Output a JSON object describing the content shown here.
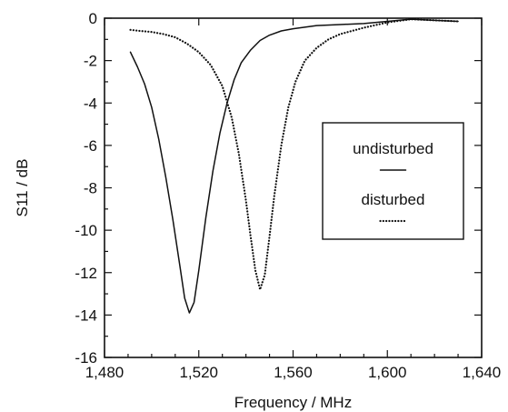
{
  "chart_data": {
    "type": "line",
    "xlabel": "Frequency  / MHz",
    "ylabel": "S11  / dB",
    "xlim": [
      1480,
      1640
    ],
    "ylim": [
      -16,
      0
    ],
    "xticks": [
      1480,
      1520,
      1560,
      1600,
      1640
    ],
    "xtick_labels": [
      "1,480",
      "1,520",
      "1,560",
      "1,600",
      "1,640"
    ],
    "yticks": [
      0,
      -2,
      -4,
      -6,
      -8,
      -10,
      -12,
      -14,
      -16
    ],
    "ytick_labels": [
      "0",
      "-2",
      "-4",
      "-6",
      "-8",
      "-10",
      "-12",
      "-14",
      "-16"
    ],
    "grid": false,
    "legend_position": "right",
    "series": [
      {
        "name": "undisturbed",
        "color": "#111111",
        "style": "solid",
        "points": [
          [
            1491,
            -1.6
          ],
          [
            1494,
            -2.3
          ],
          [
            1497,
            -3.1
          ],
          [
            1500,
            -4.2
          ],
          [
            1503,
            -5.7
          ],
          [
            1506,
            -7.5
          ],
          [
            1509,
            -9.5
          ],
          [
            1512,
            -11.7
          ],
          [
            1514,
            -13.2
          ],
          [
            1516,
            -13.9
          ],
          [
            1518,
            -13.4
          ],
          [
            1520,
            -11.9
          ],
          [
            1523,
            -9.4
          ],
          [
            1526,
            -7.2
          ],
          [
            1529,
            -5.4
          ],
          [
            1532,
            -4.0
          ],
          [
            1535,
            -2.9
          ],
          [
            1538,
            -2.1
          ],
          [
            1542,
            -1.5
          ],
          [
            1546,
            -1.05
          ],
          [
            1550,
            -0.8
          ],
          [
            1555,
            -0.6
          ],
          [
            1560,
            -0.5
          ],
          [
            1570,
            -0.35
          ],
          [
            1580,
            -0.3
          ],
          [
            1590,
            -0.25
          ],
          [
            1600,
            -0.15
          ],
          [
            1610,
            -0.05
          ],
          [
            1620,
            -0.1
          ],
          [
            1630,
            -0.15
          ]
        ]
      },
      {
        "name": "disturbed",
        "color": "#111111",
        "style": "dotted",
        "points": [
          [
            1491,
            -0.55
          ],
          [
            1495,
            -0.6
          ],
          [
            1500,
            -0.65
          ],
          [
            1505,
            -0.75
          ],
          [
            1510,
            -0.9
          ],
          [
            1515,
            -1.2
          ],
          [
            1520,
            -1.6
          ],
          [
            1525,
            -2.2
          ],
          [
            1530,
            -3.2
          ],
          [
            1534,
            -4.7
          ],
          [
            1537,
            -6.4
          ],
          [
            1540,
            -8.6
          ],
          [
            1542,
            -10.3
          ],
          [
            1544,
            -11.9
          ],
          [
            1546,
            -12.8
          ],
          [
            1548,
            -12.1
          ],
          [
            1550,
            -10.3
          ],
          [
            1552,
            -8.4
          ],
          [
            1555,
            -6.0
          ],
          [
            1558,
            -4.2
          ],
          [
            1561,
            -3.0
          ],
          [
            1565,
            -2.0
          ],
          [
            1570,
            -1.4
          ],
          [
            1575,
            -1.0
          ],
          [
            1580,
            -0.75
          ],
          [
            1590,
            -0.45
          ],
          [
            1600,
            -0.2
          ],
          [
            1610,
            -0.05
          ],
          [
            1620,
            -0.1
          ],
          [
            1630,
            -0.15
          ]
        ]
      }
    ]
  }
}
